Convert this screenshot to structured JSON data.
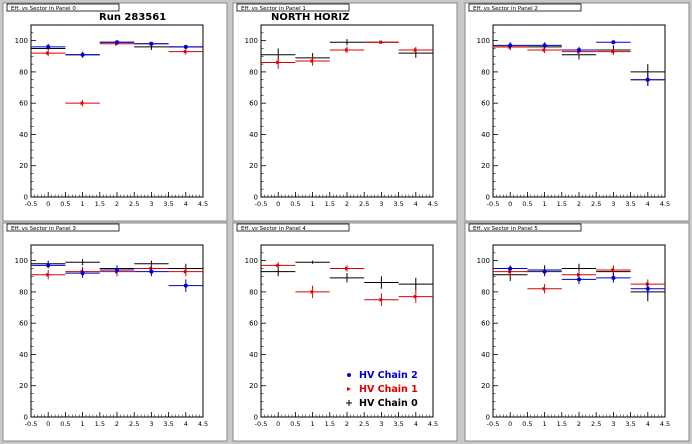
{
  "chart_data": [
    {
      "type": "scatter",
      "panel_label": "Eff. vs Sector in Panel 0",
      "annotation": "Run 283561",
      "xlim": [
        -0.5,
        4.5
      ],
      "ylim": [
        0,
        110
      ],
      "xticks": [
        "-0.5",
        "0",
        "0.5",
        "1",
        "1.5",
        "2",
        "2.5",
        "3",
        "3.5",
        "4",
        "4.5"
      ],
      "yticks": [
        "0",
        "20",
        "40",
        "60",
        "80",
        "100"
      ],
      "series": [
        {
          "color": "#000000",
          "x": [
            0,
            1,
            2,
            3,
            4
          ],
          "y": [
            95,
            91,
            99,
            96,
            96
          ],
          "err": [
            1,
            1,
            1,
            2,
            1
          ]
        },
        {
          "color": "#dd0000",
          "x": [
            0,
            1,
            2,
            3,
            4
          ],
          "y": [
            92,
            60,
            98,
            98,
            93
          ],
          "err": [
            2,
            2,
            1,
            1,
            2
          ]
        },
        {
          "color": "#0000cc",
          "x": [
            0,
            1,
            2,
            3,
            4
          ],
          "y": [
            96,
            91,
            99,
            98,
            96
          ],
          "err": [
            2,
            2,
            1,
            1,
            1
          ]
        }
      ]
    },
    {
      "type": "scatter",
      "panel_label": "Eff. vs Sector in Panel 1",
      "annotation": "NORTH HORIZ",
      "xlim": [
        -0.5,
        4.5
      ],
      "ylim": [
        0,
        110
      ],
      "xticks": [
        "-0.5",
        "0",
        "0.5",
        "1",
        "1.5",
        "2",
        "2.5",
        "3",
        "3.5",
        "4",
        "4.5"
      ],
      "yticks": [
        "0",
        "20",
        "40",
        "60",
        "80",
        "100"
      ],
      "series": [
        {
          "color": "#000000",
          "x": [
            0,
            1,
            2,
            3,
            4
          ],
          "y": [
            91,
            89,
            99,
            99,
            92
          ],
          "err": [
            4,
            3,
            2,
            1,
            3
          ]
        },
        {
          "color": "#dd0000",
          "x": [
            0,
            1,
            2,
            3,
            4
          ],
          "y": [
            86,
            87,
            94,
            99,
            94
          ],
          "err": [
            4,
            3,
            2,
            1,
            2
          ]
        },
        {
          "color": "#0000cc",
          "x": [
            0,
            1,
            2,
            3,
            4
          ],
          "y": [
            null,
            null,
            null,
            null,
            null
          ],
          "err": [
            0,
            0,
            0,
            0,
            0
          ]
        }
      ]
    },
    {
      "type": "scatter",
      "panel_label": "Eff. vs Sector in Panel 2",
      "xlim": [
        -0.5,
        4.5
      ],
      "ylim": [
        0,
        110
      ],
      "xticks": [
        "-0.5",
        "0",
        "0.5",
        "1",
        "1.5",
        "2",
        "2.5",
        "3",
        "3.5",
        "4",
        "4.5"
      ],
      "yticks": [
        "0",
        "20",
        "40",
        "60",
        "80",
        "100"
      ],
      "series": [
        {
          "color": "#000000",
          "x": [
            0,
            1,
            2,
            3,
            4
          ],
          "y": [
            96,
            96,
            91,
            94,
            80
          ],
          "err": [
            2,
            2,
            3,
            3,
            5
          ]
        },
        {
          "color": "#dd0000",
          "x": [
            0,
            1,
            2,
            3,
            4
          ],
          "y": [
            96,
            94,
            93,
            93,
            75
          ],
          "err": [
            2,
            2,
            2,
            2,
            4
          ]
        },
        {
          "color": "#0000cc",
          "x": [
            0,
            1,
            2,
            3,
            4
          ],
          "y": [
            97,
            97,
            94,
            99,
            75
          ],
          "err": [
            2,
            2,
            2,
            1,
            4
          ]
        }
      ]
    },
    {
      "type": "scatter",
      "panel_label": "Eff. vs Sector in Panel 3",
      "xlim": [
        -0.5,
        4.5
      ],
      "ylim": [
        0,
        110
      ],
      "xticks": [
        "-0.5",
        "0",
        "0.5",
        "1",
        "1.5",
        "2",
        "2.5",
        "3",
        "3.5",
        "4",
        "4.5"
      ],
      "yticks": [
        "0",
        "20",
        "40",
        "60",
        "80",
        "100"
      ],
      "series": [
        {
          "color": "#000000",
          "x": [
            0,
            1,
            2,
            3,
            4
          ],
          "y": [
            98,
            99,
            95,
            98,
            95
          ],
          "err": [
            2,
            2,
            2,
            2,
            3
          ]
        },
        {
          "color": "#dd0000",
          "x": [
            0,
            1,
            2,
            3,
            4
          ],
          "y": [
            91,
            93,
            93,
            95,
            93
          ],
          "err": [
            3,
            3,
            3,
            3,
            3
          ]
        },
        {
          "color": "#0000cc",
          "x": [
            0,
            1,
            2,
            3,
            4
          ],
          "y": [
            97,
            92,
            94,
            93,
            84
          ],
          "err": [
            2,
            3,
            3,
            3,
            4
          ]
        }
      ]
    },
    {
      "type": "scatter",
      "panel_label": "Eff. vs Sector in Panel 4",
      "xlim": [
        -0.5,
        4.5
      ],
      "ylim": [
        0,
        110
      ],
      "xticks": [
        "-0.5",
        "0",
        "0.5",
        "1",
        "1.5",
        "2",
        "2.5",
        "3",
        "3.5",
        "4",
        "4.5"
      ],
      "yticks": [
        "0",
        "20",
        "40",
        "60",
        "80",
        "100"
      ],
      "legend_position": "bottom-right",
      "legend": [
        {
          "label": "HV Chain 2",
          "color": "#0000cc",
          "marker": "dot"
        },
        {
          "label": "HV Chain 1",
          "color": "#dd0000",
          "marker": "arrow"
        },
        {
          "label": "HV Chain 0",
          "color": "#000000",
          "marker": "cross"
        }
      ],
      "series": [
        {
          "color": "#000000",
          "x": [
            0,
            1,
            2,
            3,
            4
          ],
          "y": [
            93,
            99,
            89,
            86,
            85
          ],
          "err": [
            3,
            1,
            3,
            4,
            4
          ]
        },
        {
          "color": "#dd0000",
          "x": [
            0,
            1,
            2,
            3,
            4
          ],
          "y": [
            97,
            80,
            95,
            75,
            77
          ],
          "err": [
            2,
            4,
            2,
            4,
            4
          ]
        },
        {
          "color": "#0000cc",
          "x": [
            0,
            1,
            2,
            3,
            4
          ],
          "y": [
            null,
            null,
            null,
            null,
            null
          ],
          "err": [
            0,
            0,
            0,
            0,
            0
          ]
        }
      ]
    },
    {
      "type": "scatter",
      "panel_label": "Eff. vs Sector in Panel 5",
      "xlim": [
        -0.5,
        4.5
      ],
      "ylim": [
        0,
        110
      ],
      "xticks": [
        "-0.5",
        "0",
        "0.5",
        "1",
        "1.5",
        "2",
        "2.5",
        "3",
        "3.5",
        "4",
        "4.5"
      ],
      "yticks": [
        "0",
        "20",
        "40",
        "60",
        "80",
        "100"
      ],
      "series": [
        {
          "color": "#000000",
          "x": [
            0,
            1,
            2,
            3,
            4
          ],
          "y": [
            91,
            94,
            95,
            93,
            80
          ],
          "err": [
            4,
            3,
            3,
            3,
            6
          ]
        },
        {
          "color": "#dd0000",
          "x": [
            0,
            1,
            2,
            3,
            4
          ],
          "y": [
            93,
            82,
            91,
            94,
            85
          ],
          "err": [
            3,
            3,
            3,
            3,
            3
          ]
        },
        {
          "color": "#0000cc",
          "x": [
            0,
            1,
            2,
            3,
            4
          ],
          "y": [
            95,
            93,
            88,
            89,
            82
          ],
          "err": [
            2,
            3,
            3,
            3,
            4
          ]
        }
      ]
    }
  ]
}
